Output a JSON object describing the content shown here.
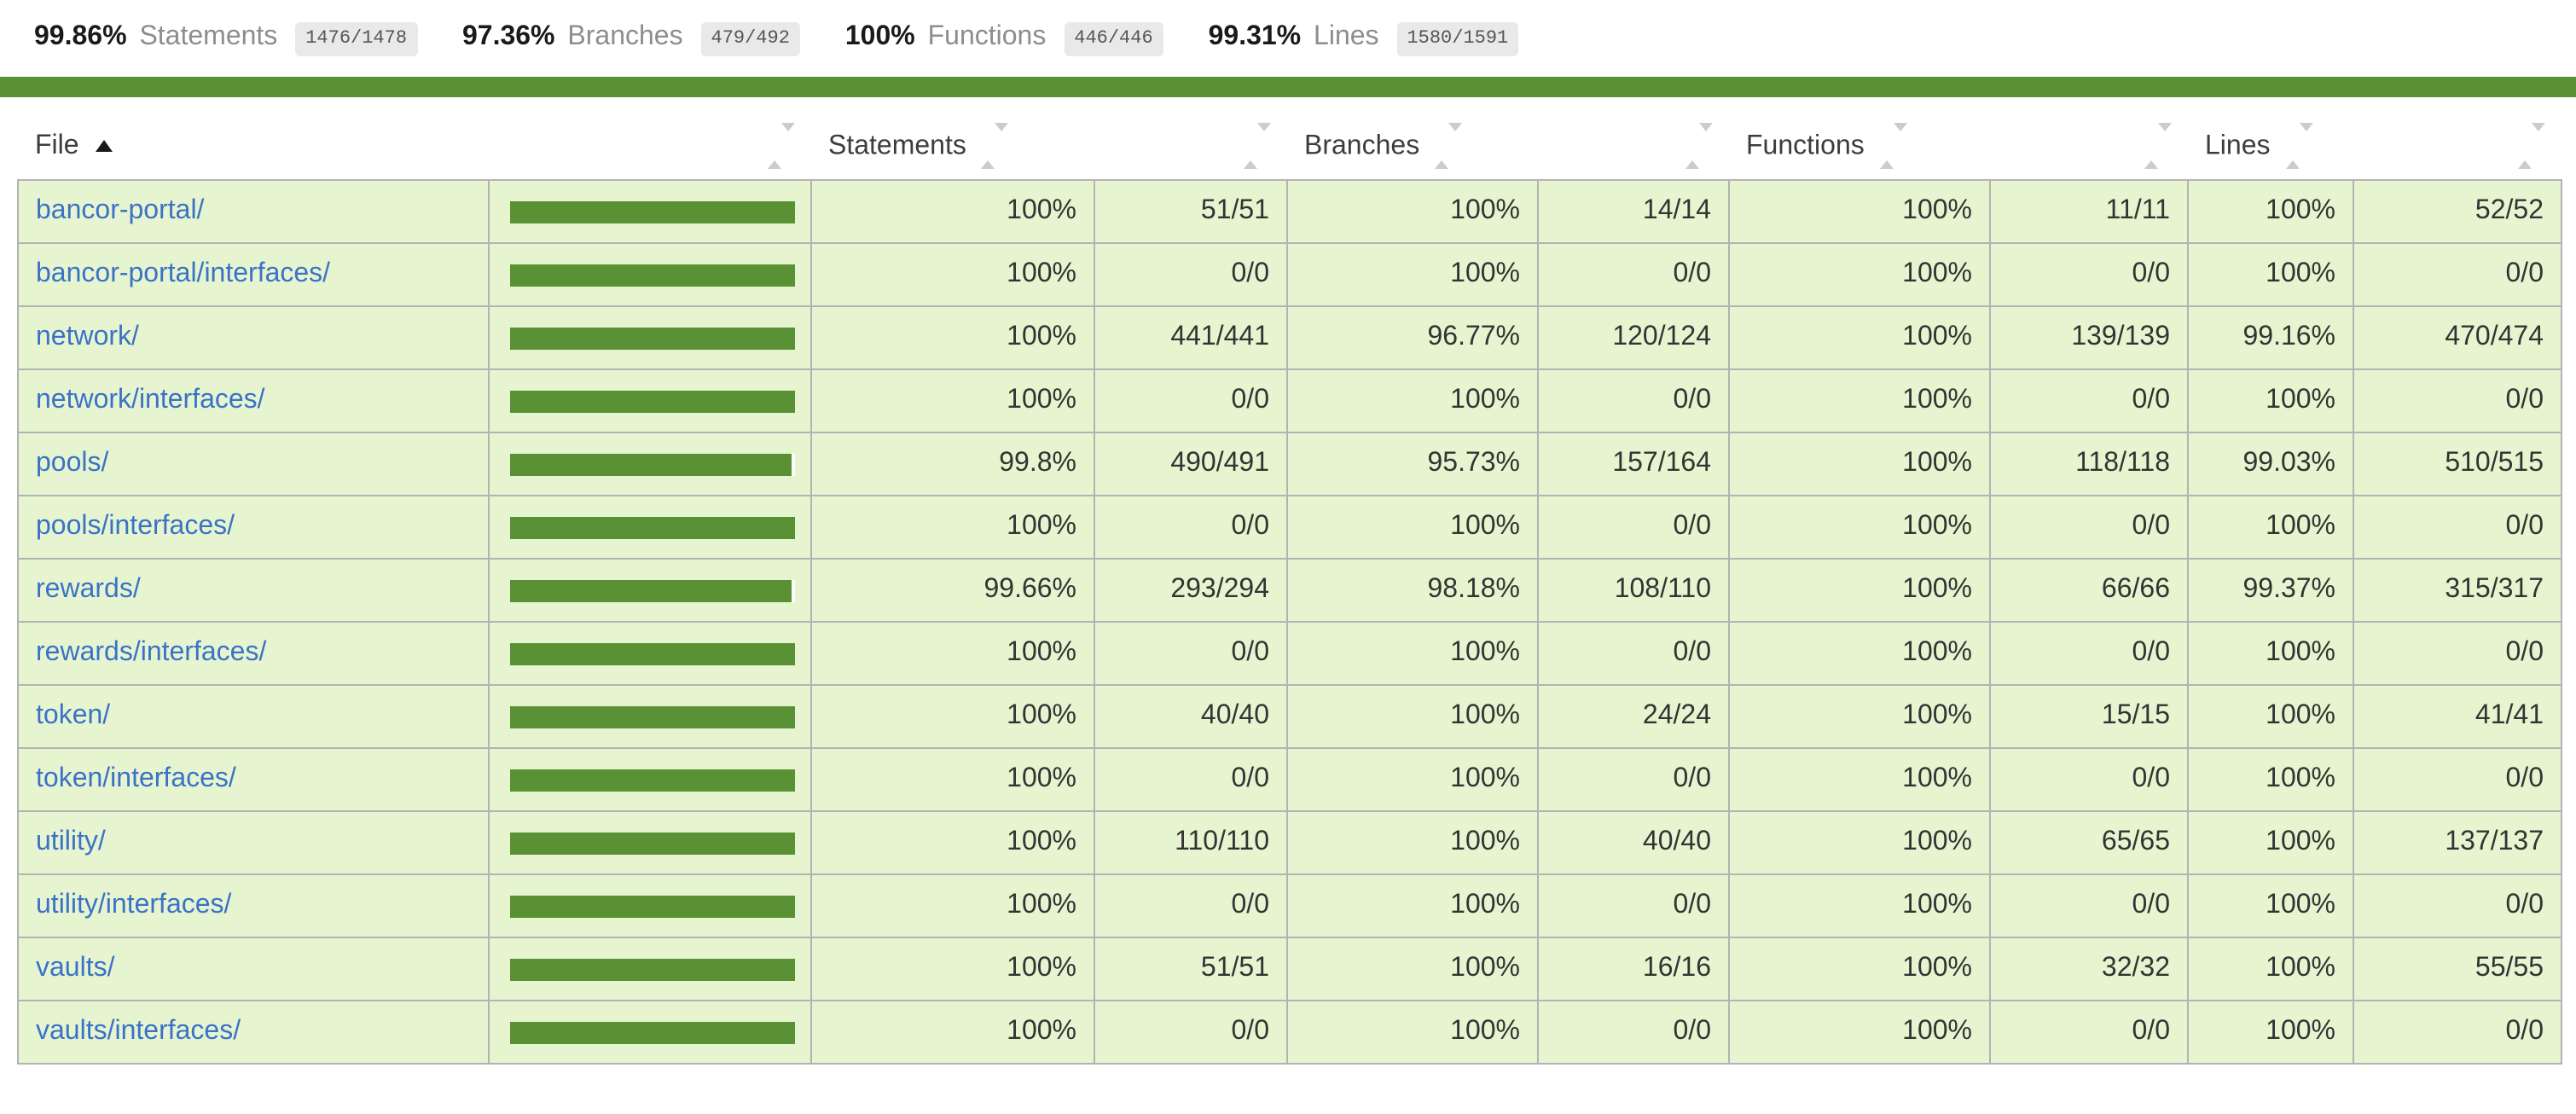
{
  "summary": {
    "metrics": [
      {
        "pct": "99.86%",
        "label": "Statements",
        "fraction": "1476/1478"
      },
      {
        "pct": "97.36%",
        "label": "Branches",
        "fraction": "479/492"
      },
      {
        "pct": "100%",
        "label": "Functions",
        "fraction": "446/446"
      },
      {
        "pct": "99.31%",
        "label": "Lines",
        "fraction": "1580/1591"
      }
    ]
  },
  "colors": {
    "banner": "#5a9135",
    "bar_fill": "#5a9135",
    "bar_empty": "#ffffff",
    "row_bg": "#e6f5d0",
    "link": "#3b72c8",
    "border": "#b3b3b3",
    "badge_bg": "#e9e9e9",
    "badge_text": "#555555",
    "quiet": "#8d8d8d",
    "text": "#3c3c3c",
    "sorter": "#cccccc",
    "sort_active": "#1a1a1a"
  },
  "table": {
    "headers": {
      "file": "File",
      "statements": "Statements",
      "branches": "Branches",
      "functions": "Functions",
      "lines": "Lines"
    },
    "sort": {
      "column": "file",
      "direction": "asc"
    },
    "rows": [
      {
        "file": "bancor-portal/",
        "bar_pct": 100,
        "statements_pct": "100%",
        "statements_frac": "51/51",
        "branches_pct": "100%",
        "branches_frac": "14/14",
        "functions_pct": "100%",
        "functions_frac": "11/11",
        "lines_pct": "100%",
        "lines_frac": "52/52"
      },
      {
        "file": "bancor-portal/interfaces/",
        "bar_pct": 100,
        "statements_pct": "100%",
        "statements_frac": "0/0",
        "branches_pct": "100%",
        "branches_frac": "0/0",
        "functions_pct": "100%",
        "functions_frac": "0/0",
        "lines_pct": "100%",
        "lines_frac": "0/0"
      },
      {
        "file": "network/",
        "bar_pct": 100,
        "statements_pct": "100%",
        "statements_frac": "441/441",
        "branches_pct": "96.77%",
        "branches_frac": "120/124",
        "functions_pct": "100%",
        "functions_frac": "139/139",
        "lines_pct": "99.16%",
        "lines_frac": "470/474"
      },
      {
        "file": "network/interfaces/",
        "bar_pct": 100,
        "statements_pct": "100%",
        "statements_frac": "0/0",
        "branches_pct": "100%",
        "branches_frac": "0/0",
        "functions_pct": "100%",
        "functions_frac": "0/0",
        "lines_pct": "100%",
        "lines_frac": "0/0"
      },
      {
        "file": "pools/",
        "bar_pct": 99.8,
        "statements_pct": "99.8%",
        "statements_frac": "490/491",
        "branches_pct": "95.73%",
        "branches_frac": "157/164",
        "functions_pct": "100%",
        "functions_frac": "118/118",
        "lines_pct": "99.03%",
        "lines_frac": "510/515"
      },
      {
        "file": "pools/interfaces/",
        "bar_pct": 100,
        "statements_pct": "100%",
        "statements_frac": "0/0",
        "branches_pct": "100%",
        "branches_frac": "0/0",
        "functions_pct": "100%",
        "functions_frac": "0/0",
        "lines_pct": "100%",
        "lines_frac": "0/0"
      },
      {
        "file": "rewards/",
        "bar_pct": 99.66,
        "statements_pct": "99.66%",
        "statements_frac": "293/294",
        "branches_pct": "98.18%",
        "branches_frac": "108/110",
        "functions_pct": "100%",
        "functions_frac": "66/66",
        "lines_pct": "99.37%",
        "lines_frac": "315/317"
      },
      {
        "file": "rewards/interfaces/",
        "bar_pct": 100,
        "statements_pct": "100%",
        "statements_frac": "0/0",
        "branches_pct": "100%",
        "branches_frac": "0/0",
        "functions_pct": "100%",
        "functions_frac": "0/0",
        "lines_pct": "100%",
        "lines_frac": "0/0"
      },
      {
        "file": "token/",
        "bar_pct": 100,
        "statements_pct": "100%",
        "statements_frac": "40/40",
        "branches_pct": "100%",
        "branches_frac": "24/24",
        "functions_pct": "100%",
        "functions_frac": "15/15",
        "lines_pct": "100%",
        "lines_frac": "41/41"
      },
      {
        "file": "token/interfaces/",
        "bar_pct": 100,
        "statements_pct": "100%",
        "statements_frac": "0/0",
        "branches_pct": "100%",
        "branches_frac": "0/0",
        "functions_pct": "100%",
        "functions_frac": "0/0",
        "lines_pct": "100%",
        "lines_frac": "0/0"
      },
      {
        "file": "utility/",
        "bar_pct": 100,
        "statements_pct": "100%",
        "statements_frac": "110/110",
        "branches_pct": "100%",
        "branches_frac": "40/40",
        "functions_pct": "100%",
        "functions_frac": "65/65",
        "lines_pct": "100%",
        "lines_frac": "137/137"
      },
      {
        "file": "utility/interfaces/",
        "bar_pct": 100,
        "statements_pct": "100%",
        "statements_frac": "0/0",
        "branches_pct": "100%",
        "branches_frac": "0/0",
        "functions_pct": "100%",
        "functions_frac": "0/0",
        "lines_pct": "100%",
        "lines_frac": "0/0"
      },
      {
        "file": "vaults/",
        "bar_pct": 100,
        "statements_pct": "100%",
        "statements_frac": "51/51",
        "branches_pct": "100%",
        "branches_frac": "16/16",
        "functions_pct": "100%",
        "functions_frac": "32/32",
        "lines_pct": "100%",
        "lines_frac": "55/55"
      },
      {
        "file": "vaults/interfaces/",
        "bar_pct": 100,
        "statements_pct": "100%",
        "statements_frac": "0/0",
        "branches_pct": "100%",
        "branches_frac": "0/0",
        "functions_pct": "100%",
        "functions_frac": "0/0",
        "lines_pct": "100%",
        "lines_frac": "0/0"
      }
    ]
  }
}
